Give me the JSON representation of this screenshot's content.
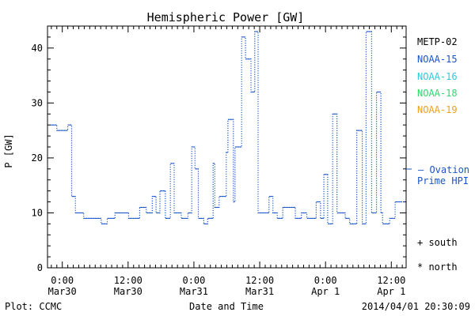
{
  "chart_data": {
    "type": "line",
    "title": "Hemispheric Power [GW]",
    "ylabel": "P [GW]",
    "xlabel": "Date and Time",
    "ylim": [
      0,
      44
    ],
    "yticks": [
      0,
      10,
      20,
      30,
      40
    ],
    "xlim": [
      -2.7,
      62.7
    ],
    "xticks": [
      {
        "h": 0,
        "time": "0:00",
        "date": "Mar30"
      },
      {
        "h": 12,
        "time": "12:00",
        "date": "Mar30"
      },
      {
        "h": 24,
        "time": "0:00",
        "date": "Mar31"
      },
      {
        "h": 36,
        "time": "12:00",
        "date": "Mar31"
      },
      {
        "h": 48,
        "time": "0:00",
        "date": "Apr 1"
      },
      {
        "h": 60,
        "time": "12:00",
        "date": "Apr 1"
      }
    ],
    "line_style": "dotted-step",
    "series": [
      {
        "name": "Ovation Prime HPI",
        "color": "#1a55c8",
        "x": [
          -2.2,
          -1,
          0.3,
          1,
          1.7,
          2.4,
          3.9,
          6.1,
          7.1,
          8.2,
          8.9,
          9.6,
          12.1,
          12.7,
          13.4,
          14.1,
          15.3,
          16.4,
          17.1,
          17.8,
          18.8,
          19.7,
          20.4,
          21.7,
          22.4,
          22.9,
          23.6,
          24.2,
          24.8,
          25.8,
          26.5,
          27.5,
          27.8,
          28.6,
          29.9,
          30.2,
          31.2,
          31.5,
          32.7,
          33.4,
          34.4,
          35.1,
          35.7,
          36.4,
          37.1,
          37.7,
          38.4,
          39.2,
          40.2,
          42.5,
          43.6,
          44.6,
          46.3,
          47.1,
          47.7,
          48.4,
          49.3,
          50.1,
          51.6,
          52.4,
          53.7,
          54.7,
          55.4,
          56.4,
          57.3,
          58.1,
          58.4,
          59.7,
          60.7,
          61.4,
          61.9
        ],
        "y": [
          26,
          25,
          25,
          26,
          13,
          10,
          9,
          9,
          8,
          9,
          9,
          10,
          9,
          9,
          9,
          11,
          10,
          13,
          10,
          14,
          9,
          19,
          10,
          9,
          9,
          10,
          22,
          18,
          9,
          8,
          9,
          19,
          11,
          13,
          21,
          27,
          12,
          22,
          42,
          38,
          32,
          43,
          10,
          10,
          10,
          13,
          10,
          9,
          11,
          9,
          10,
          9,
          12,
          9,
          17,
          8,
          28,
          10,
          9,
          8,
          25,
          8,
          43,
          10,
          32,
          10,
          8,
          9,
          12,
          12,
          12
        ]
      }
    ],
    "legend": {
      "position": "right",
      "entries": [
        {
          "label": "METP-02",
          "color": "#000000"
        },
        {
          "label": "NOAA-15",
          "color": "#1a55c8"
        },
        {
          "label": "NOAA-16",
          "color": "#33c8e0"
        },
        {
          "label": "NOAA-18",
          "color": "#33d66e"
        },
        {
          "label": "NOAA-19",
          "color": "#f0a020"
        }
      ],
      "ovation_line1": "— Ovation",
      "ovation_line2": "Prime HPI",
      "south": "+ south",
      "north": "* north"
    }
  },
  "footer": {
    "left": "Plot: CCMC",
    "right": "2014/04/01  20:30:09"
  }
}
